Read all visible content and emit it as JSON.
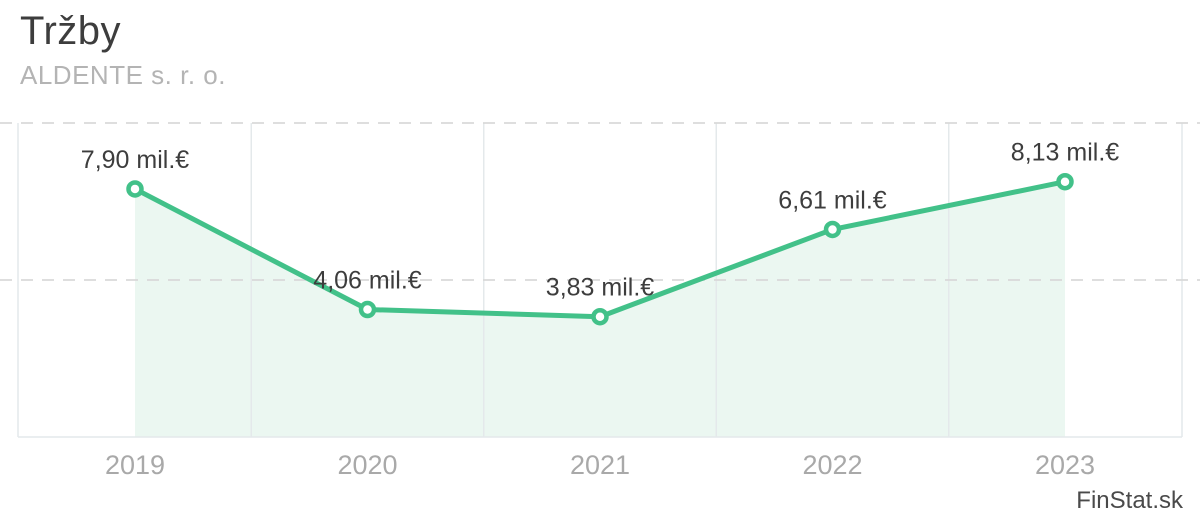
{
  "header": {
    "title": "Tržby",
    "subtitle": "ALDENTE s. r. o."
  },
  "watermark": "FinStat.sk",
  "chart_data": {
    "type": "line",
    "title": "Tržby",
    "subtitle": "ALDENTE s. r. o.",
    "categories": [
      "2019",
      "2020",
      "2021",
      "2022",
      "2023"
    ],
    "series": [
      {
        "name": "Tržby",
        "values": [
          7.9,
          4.06,
          3.83,
          6.61,
          8.13
        ]
      }
    ],
    "values": [
      7.9,
      4.06,
      3.83,
      6.61,
      8.13
    ],
    "point_labels": [
      "7,90 mil.€",
      "4,06 mil.€",
      "3,83 mil.€",
      "6,61 mil.€",
      "8,13 mil.€"
    ],
    "unit": "mil.€",
    "xlabel": "",
    "ylabel": "",
    "ylim": [
      0,
      10
    ],
    "gridline_values": [
      5,
      10
    ],
    "grid": "horizontal-dashed",
    "legend": "none",
    "area_fill": true,
    "markers": "open-circle",
    "colors": {
      "line": "#42c189",
      "area": "#ebf7f1",
      "marker_fill": "#ffffff",
      "grid_dashed": "#d9d9d9",
      "plot_border": "#e4e9eb",
      "point_label_text": "#3d3d3d",
      "axis_text": "#a9a9a9",
      "title_text": "#3d3d3d",
      "subtitle_text": "#b4b4b4",
      "watermark_text": "#4a4a4a"
    }
  }
}
